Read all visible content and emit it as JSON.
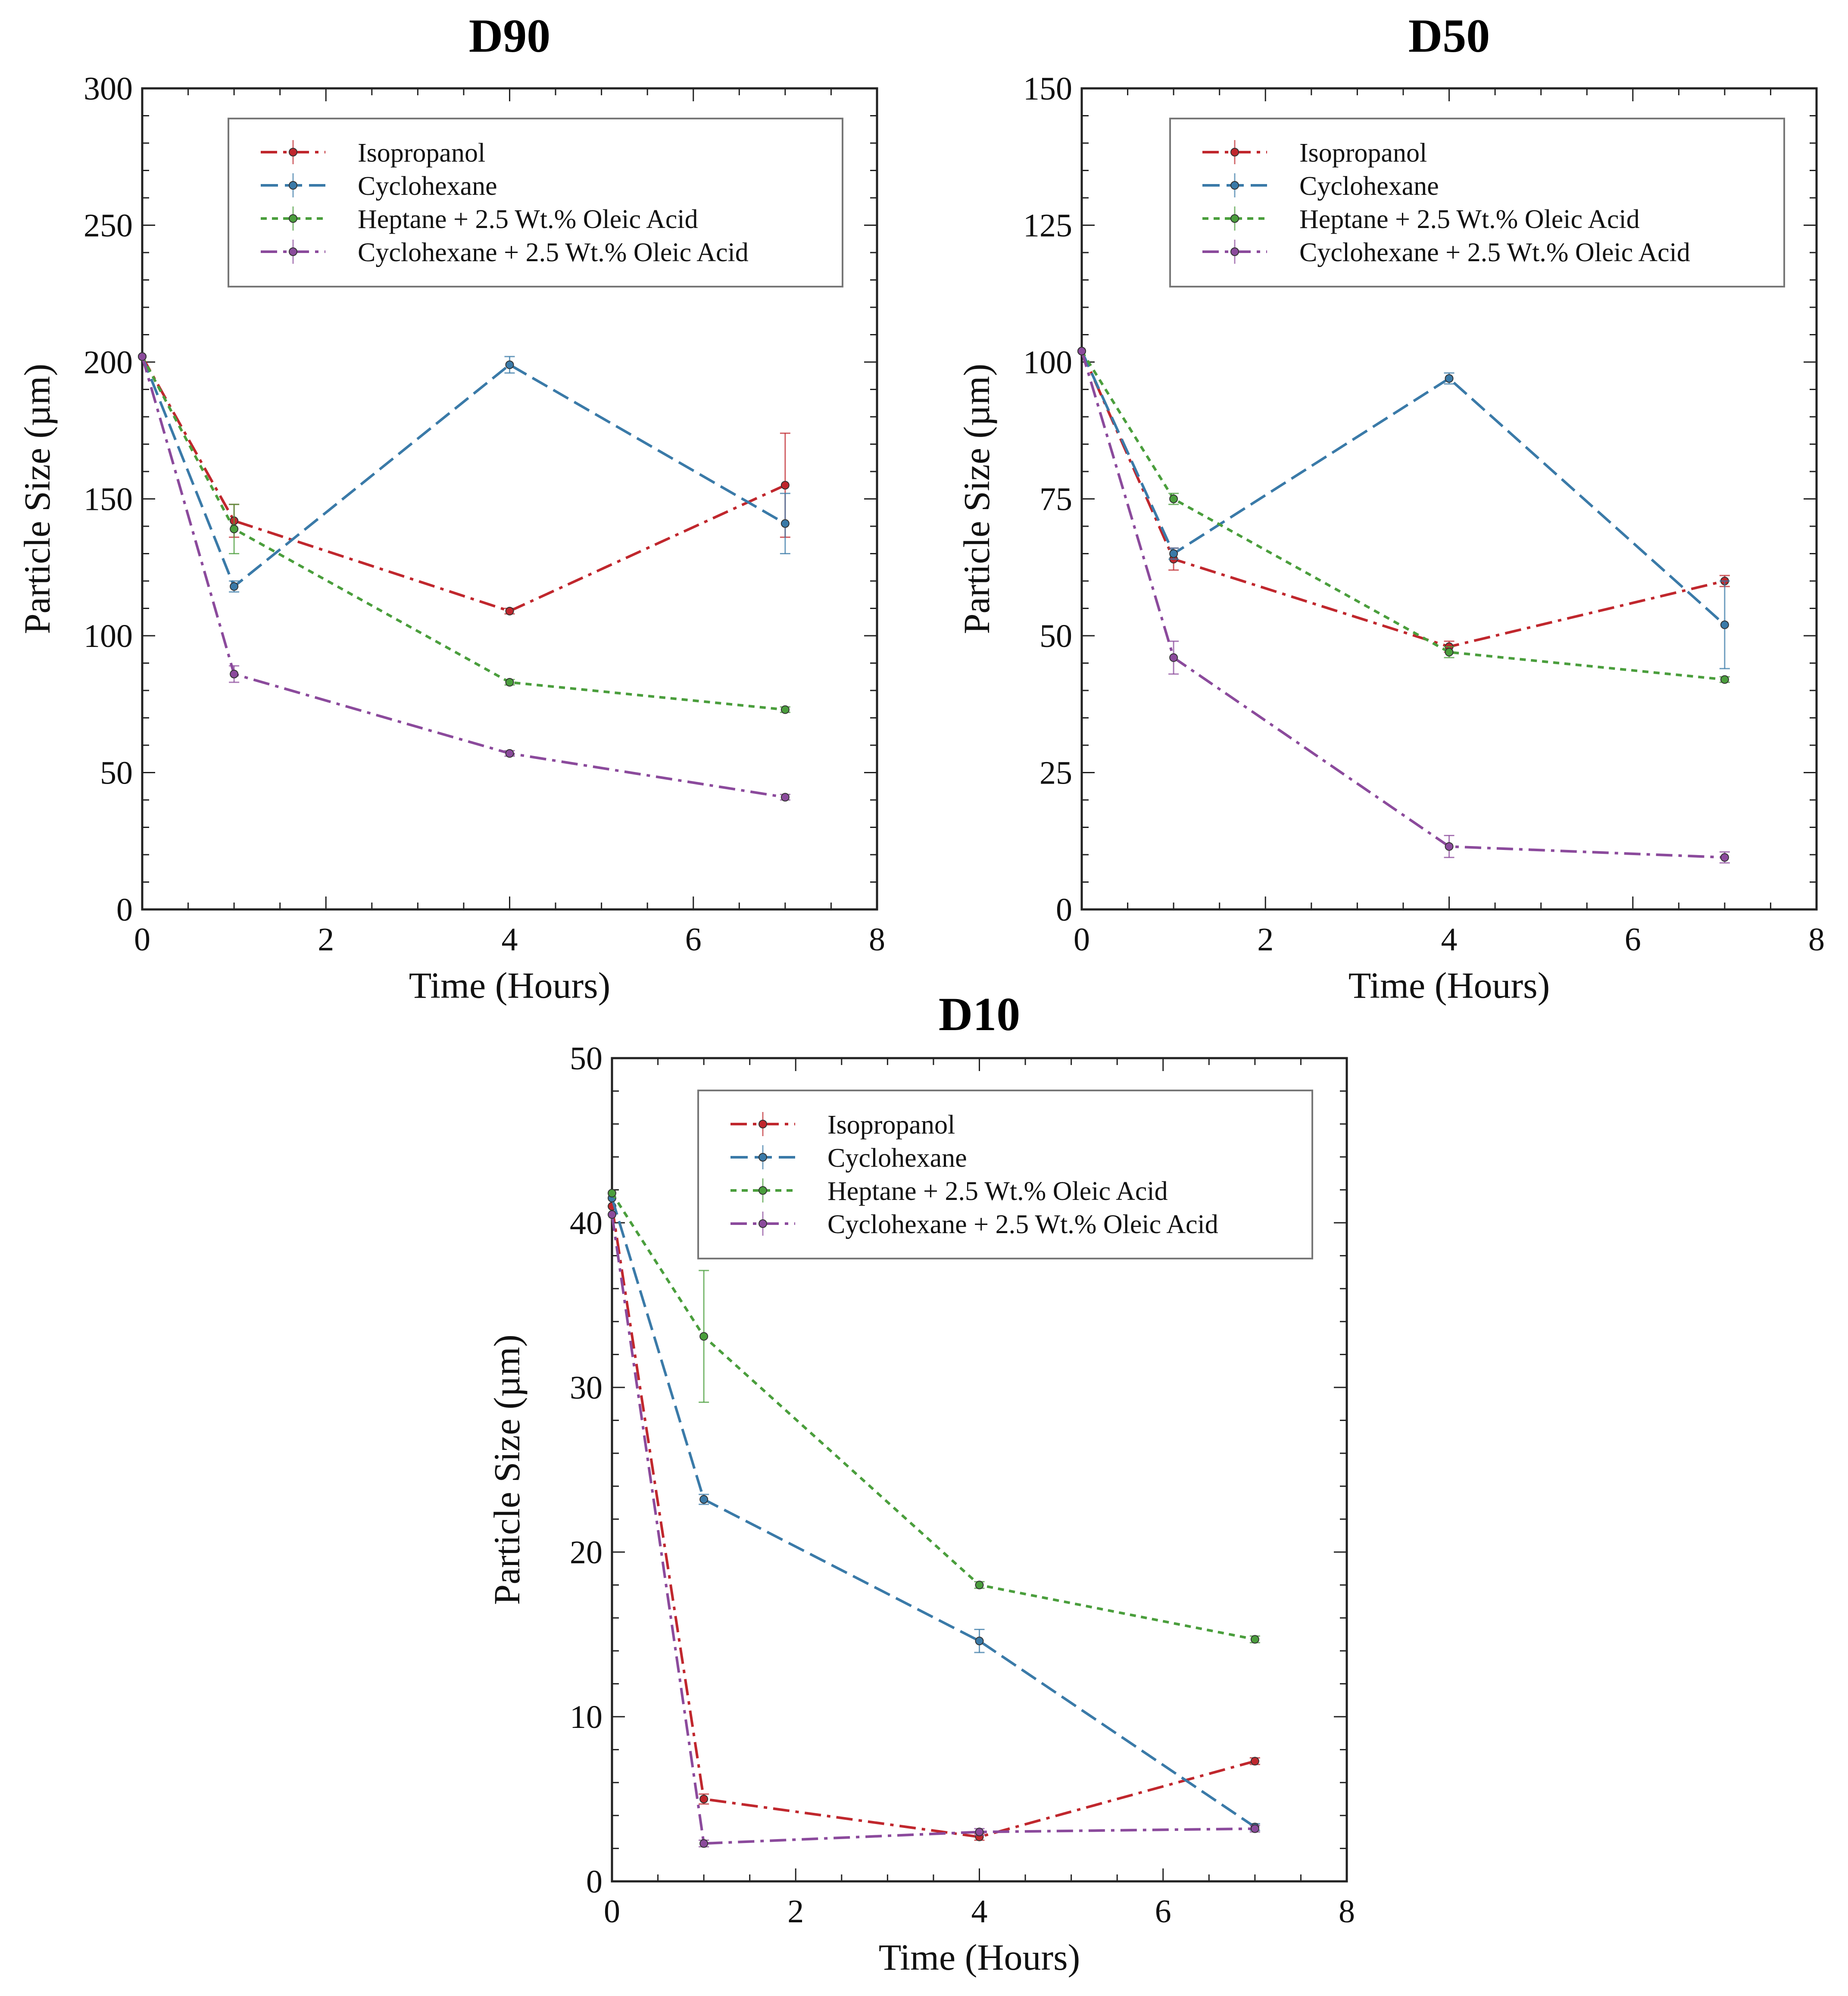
{
  "chart_data": [
    {
      "type": "line",
      "title": "D90",
      "xlabel": "Time (Hours)",
      "ylabel": "Particle Size (µm)",
      "xlim": [
        0,
        8
      ],
      "ylim": [
        0,
        300
      ],
      "xticks": [
        0,
        2,
        4,
        6,
        8
      ],
      "yticks": [
        0,
        50,
        100,
        150,
        200,
        250,
        300
      ],
      "legend_position": "top-right",
      "x": [
        0,
        1,
        4,
        7
      ],
      "series": [
        {
          "name": "Isopropanol",
          "color": "#c0272d",
          "dash": "dashdot",
          "values": [
            202,
            142,
            109,
            155
          ],
          "errors": [
            0,
            6,
            1,
            19
          ]
        },
        {
          "name": "Cyclohexane",
          "color": "#3a7aa8",
          "dash": "dash",
          "values": [
            202,
            118,
            199,
            141
          ],
          "errors": [
            0,
            2,
            3,
            11
          ]
        },
        {
          "name": "Heptane + 2.5 Wt.% Oleic Acid",
          "color": "#4a9e3c",
          "dash": "dot",
          "values": [
            202,
            139,
            83,
            73
          ],
          "errors": [
            0,
            9,
            1,
            1
          ]
        },
        {
          "name": "Cyclohexane + 2.5 Wt.% Oleic Acid",
          "color": "#8b4a9c",
          "dash": "dashdot",
          "values": [
            202,
            86,
            57,
            41
          ],
          "errors": [
            0,
            3,
            1,
            1
          ]
        }
      ]
    },
    {
      "type": "line",
      "title": "D50",
      "xlabel": "Time (Hours)",
      "ylabel": "Particle Size (µm)",
      "xlim": [
        0,
        8
      ],
      "ylim": [
        0,
        150
      ],
      "xticks": [
        0,
        2,
        4,
        6,
        8
      ],
      "yticks": [
        0,
        25,
        50,
        75,
        100,
        125,
        150
      ],
      "legend_position": "top-right",
      "x": [
        0,
        1,
        4,
        7
      ],
      "series": [
        {
          "name": "Isopropanol",
          "color": "#c0272d",
          "dash": "dashdot",
          "values": [
            102,
            64,
            48,
            60
          ],
          "errors": [
            0,
            2,
            1,
            1
          ]
        },
        {
          "name": "Cyclohexane",
          "color": "#3a7aa8",
          "dash": "dash",
          "values": [
            102,
            65,
            97,
            52
          ],
          "errors": [
            0,
            1,
            1,
            8
          ]
        },
        {
          "name": "Heptane + 2.5 Wt.% Oleic Acid",
          "color": "#4a9e3c",
          "dash": "dot",
          "values": [
            102,
            75,
            47,
            42
          ],
          "errors": [
            0,
            1,
            1,
            0.5
          ]
        },
        {
          "name": "Cyclohexane + 2.5 Wt.% Oleic Acid",
          "color": "#8b4a9c",
          "dash": "dashdot",
          "values": [
            102,
            46,
            11.5,
            9.5
          ],
          "errors": [
            0,
            3,
            2,
            1
          ]
        }
      ]
    },
    {
      "type": "line",
      "title": "D10",
      "xlabel": "Time (Hours)",
      "ylabel": "Particle Size (µm)",
      "xlim": [
        0,
        8
      ],
      "ylim": [
        0,
        50
      ],
      "xticks": [
        0,
        2,
        4,
        6,
        8
      ],
      "yticks": [
        0,
        10,
        20,
        30,
        40,
        50
      ],
      "legend_position": "top-right",
      "x": [
        0,
        1,
        4,
        7
      ],
      "series": [
        {
          "name": "Isopropanol",
          "color": "#c0272d",
          "dash": "dashdot",
          "values": [
            41,
            5,
            2.7,
            7.3
          ],
          "errors": [
            0,
            0.3,
            0.2,
            0.2
          ]
        },
        {
          "name": "Cyclohexane",
          "color": "#3a7aa8",
          "dash": "dash",
          "values": [
            41.5,
            23.2,
            14.6,
            3.3
          ],
          "errors": [
            0,
            0.3,
            0.7,
            0.2
          ]
        },
        {
          "name": "Heptane + 2.5 Wt.% Oleic Acid",
          "color": "#4a9e3c",
          "dash": "dot",
          "values": [
            41.8,
            33.1,
            18,
            14.7
          ],
          "errors": [
            0,
            4,
            0.2,
            0.2
          ]
        },
        {
          "name": "Cyclohexane + 2.5 Wt.% Oleic Acid",
          "color": "#8b4a9c",
          "dash": "dashdot",
          "values": [
            40.5,
            2.3,
            3,
            3.2
          ],
          "errors": [
            0,
            0.2,
            0.2,
            0.2
          ]
        }
      ]
    }
  ]
}
